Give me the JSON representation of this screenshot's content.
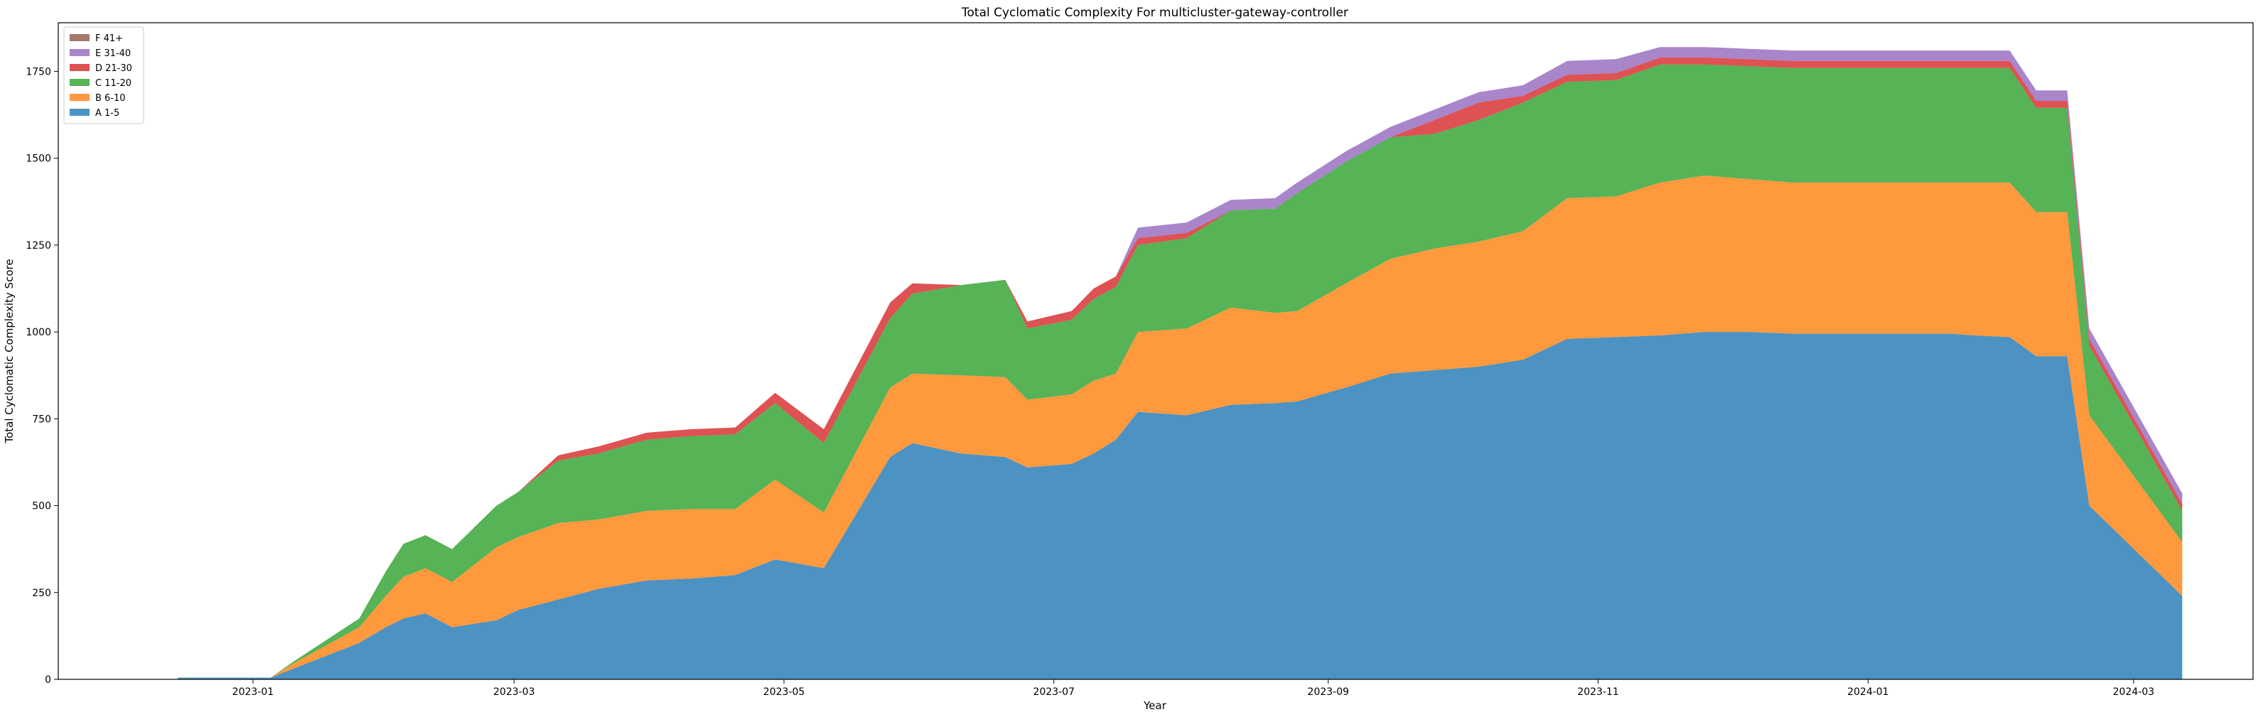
{
  "chart_data": {
    "type": "area",
    "stacked": true,
    "title": "Total Cyclomatic Complexity For multicluster-gateway-controller",
    "xlabel": "Year",
    "ylabel": "Total Cyclomatic Complexity Score",
    "x_axis": "date",
    "xlim": [
      "2022-11-18",
      "2024-03-28"
    ],
    "ylim": [
      0,
      1890
    ],
    "x_ticks": [
      "2023-01",
      "2023-03",
      "2023-05",
      "2023-07",
      "2023-09",
      "2023-11",
      "2024-01",
      "2024-03"
    ],
    "y_ticks": [
      0,
      250,
      500,
      750,
      1000,
      1250,
      1500,
      1750
    ],
    "legend_position": "top-left",
    "grid": false,
    "x": [
      "2022-12-15",
      "2023-01-05",
      "2023-01-10",
      "2023-01-25",
      "2023-01-31",
      "2023-02-04",
      "2023-02-09",
      "2023-02-15",
      "2023-02-25",
      "2023-03-02",
      "2023-03-11",
      "2023-03-20",
      "2023-03-31",
      "2023-04-10",
      "2023-04-20",
      "2023-04-29",
      "2023-05-10",
      "2023-05-25",
      "2023-05-30",
      "2023-06-10",
      "2023-06-20",
      "2023-06-25",
      "2023-07-05",
      "2023-07-10",
      "2023-07-15",
      "2023-07-20",
      "2023-07-31",
      "2023-08-10",
      "2023-08-20",
      "2023-08-25",
      "2023-09-05",
      "2023-09-15",
      "2023-09-25",
      "2023-10-05",
      "2023-10-15",
      "2023-10-25",
      "2023-11-05",
      "2023-11-15",
      "2023-11-25",
      "2023-12-05",
      "2023-12-15",
      "2024-01-01",
      "2024-01-20",
      "2024-01-25",
      "2024-02-02",
      "2024-02-08",
      "2024-02-15",
      "2024-02-20",
      "2024-03-12"
    ],
    "series": [
      {
        "name": "A 1-5",
        "color": "#1f77b4",
        "values": [
          5,
          5,
          30,
          105,
          150,
          175,
          190,
          150,
          170,
          200,
          230,
          260,
          285,
          290,
          300,
          345,
          320,
          640,
          680,
          650,
          640,
          610,
          620,
          650,
          690,
          770,
          760,
          790,
          795,
          800,
          840,
          880,
          890,
          900,
          920,
          980,
          985,
          990,
          1000,
          1000,
          995,
          995,
          995,
          990,
          985,
          930,
          930,
          500,
          240
        ]
      },
      {
        "name": "B 6-10",
        "color": "#ff7f0e",
        "values": [
          0,
          0,
          15,
          45,
          90,
          120,
          130,
          130,
          210,
          210,
          220,
          200,
          200,
          200,
          190,
          230,
          160,
          200,
          200,
          225,
          230,
          195,
          200,
          210,
          190,
          230,
          250,
          280,
          260,
          260,
          300,
          330,
          350,
          360,
          370,
          405,
          405,
          440,
          450,
          440,
          435,
          435,
          435,
          440,
          445,
          415,
          415,
          260,
          155
        ]
      },
      {
        "name": "C 11-20",
        "color": "#2ca02c",
        "values": [
          0,
          0,
          5,
          25,
          70,
          95,
          95,
          95,
          120,
          130,
          180,
          190,
          205,
          210,
          215,
          220,
          200,
          200,
          230,
          260,
          280,
          205,
          215,
          235,
          250,
          250,
          260,
          280,
          300,
          340,
          350,
          350,
          330,
          350,
          370,
          335,
          335,
          340,
          320,
          325,
          330,
          330,
          330,
          330,
          330,
          300,
          300,
          200,
          90
        ]
      },
      {
        "name": "D 21-30",
        "color": "#d62728",
        "values": [
          0,
          0,
          0,
          0,
          0,
          0,
          0,
          0,
          0,
          0,
          15,
          20,
          20,
          20,
          20,
          30,
          40,
          45,
          30,
          0,
          0,
          20,
          25,
          30,
          30,
          20,
          15,
          0,
          0,
          0,
          0,
          0,
          40,
          50,
          20,
          20,
          20,
          20,
          20,
          20,
          20,
          20,
          20,
          20,
          20,
          20,
          20,
          20,
          20
        ]
      },
      {
        "name": "E 31-40",
        "color": "#9467bd",
        "values": [
          0,
          0,
          0,
          0,
          0,
          0,
          0,
          0,
          0,
          0,
          0,
          0,
          0,
          0,
          0,
          0,
          0,
          0,
          0,
          0,
          0,
          0,
          0,
          0,
          0,
          30,
          30,
          30,
          30,
          30,
          30,
          30,
          30,
          30,
          30,
          40,
          40,
          30,
          30,
          30,
          30,
          30,
          30,
          30,
          30,
          30,
          30,
          30,
          30
        ]
      },
      {
        "name": "F 41+",
        "color": "#8c564b",
        "values": [
          0,
          0,
          0,
          0,
          0,
          0,
          0,
          0,
          0,
          0,
          0,
          0,
          0,
          0,
          0,
          0,
          0,
          0,
          0,
          0,
          0,
          0,
          0,
          0,
          0,
          0,
          0,
          0,
          0,
          0,
          0,
          0,
          0,
          0,
          0,
          0,
          0,
          0,
          0,
          0,
          0,
          0,
          0,
          0,
          0,
          0,
          0,
          0,
          0
        ]
      }
    ],
    "legend_order": [
      "F 41+",
      "E 31-40",
      "D 21-30",
      "C 11-20",
      "B 6-10",
      "A 1-5"
    ]
  }
}
